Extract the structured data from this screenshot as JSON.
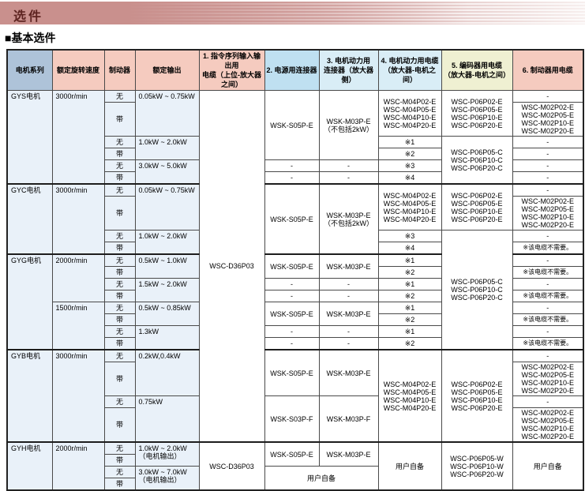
{
  "page": {
    "banner_title": "选件",
    "section_title": "■基本选件"
  },
  "colors": {
    "banner_bg": "#c9908d",
    "banner_text": "#5d2320",
    "header_series_bg": "#aec3d9",
    "header_salmon_bg": "#f5cbbf",
    "header_blue_bg": "#bfe0f1",
    "header_paleblue_bg": "#d9edf6",
    "header_yellow_bg": "#eff0d2",
    "body_tint_bg": "#e9f1f9",
    "grid_line": "#4a4a4a"
  },
  "table": {
    "headers": [
      {
        "label": "电机系列",
        "bg": "#aec3d9"
      },
      {
        "label": "额定旋转速度",
        "bg": "#f5cbbf"
      },
      {
        "label": "制动器",
        "bg": "#f5cbbf"
      },
      {
        "label": "额定输出",
        "bg": "#f5cbbf"
      },
      {
        "label": "1. 指令序列输入输出用\n电缆（上位-放大器之间）",
        "bg": "#f5cbbf"
      },
      {
        "label": "2. 电源用连接器",
        "bg": "#bfe0f1"
      },
      {
        "label": "3. 电机动力用\n连接器（放大器侧）",
        "bg": "#d9edf6"
      },
      {
        "label": "4. 电机动力用电缆\n（放大器-电机之间）",
        "bg": "#d9edf6"
      },
      {
        "label": "5. 编码器用电缆\n（放大器-电机之间）",
        "bg": "#eff0d2"
      },
      {
        "label": "6. 制动器用电缆",
        "bg": "#f5cbbf"
      }
    ],
    "rows": [
      {
        "cells": [
          {
            "v": "GYS电机",
            "r": 6,
            "k": "tint ltop name"
          },
          {
            "v": "3000r/min",
            "r": 6,
            "k": "tint ltop spd"
          },
          {
            "v": "无",
            "k": "tint brk"
          },
          {
            "v": "0.05kW ~ 0.75kW",
            "r": 2,
            "k": "tint ltop out"
          },
          {
            "v": "WSC-D36P03",
            "r": 22
          },
          {
            "v": "WSK-S05P-E",
            "r": 4
          },
          {
            "v": [
              "WSK-M03P-E",
              "（不包括2kW）"
            ],
            "r": 4
          },
          {
            "v": [
              "WSC-M04P02-E",
              "WSC-M04P05-E",
              "WSC-M04P10-E",
              "WSC-M04P20-E"
            ],
            "r": 2
          },
          {
            "v": [
              "WSC-P06P02-E",
              "WSC-P06P05-E",
              "WSC-P06P10-E",
              "WSC-P06P20-E"
            ],
            "r": 2
          },
          {
            "v": "-"
          }
        ]
      },
      {
        "cells": [
          {
            "v": "带",
            "k": "tint brk"
          },
          {
            "v": [
              "WSC-M02P02-E",
              "WSC-M02P05-E",
              "WSC-M02P10-E",
              "WSC-M02P20-E"
            ]
          }
        ]
      },
      {
        "cells": [
          {
            "v": "无",
            "k": "tint brk"
          },
          {
            "v": "1.0kW ~ 2.0kW",
            "r": 2,
            "k": "tint ltop out"
          },
          {
            "v": "※1"
          },
          {
            "v": [
              "WSC-P06P05-C",
              "WSC-P06P10-C",
              "WSC-P06P20-C"
            ],
            "r": 4
          },
          {
            "v": "-"
          }
        ]
      },
      {
        "cells": [
          {
            "v": "带",
            "k": "tint brk"
          },
          {
            "v": "※2"
          },
          {
            "v": "-"
          }
        ]
      },
      {
        "cells": [
          {
            "v": "无",
            "k": "tint brk"
          },
          {
            "v": "3.0kW ~ 5.0kW",
            "r": 2,
            "k": "tint ltop out"
          },
          {
            "v": "-"
          },
          {
            "v": "-"
          },
          {
            "v": "※3"
          },
          {
            "v": "-"
          }
        ]
      },
      {
        "cells": [
          {
            "v": "带",
            "k": "tint brk"
          },
          {
            "v": "-"
          },
          {
            "v": "-"
          },
          {
            "v": "※4"
          },
          {
            "v": "-"
          }
        ]
      },
      {
        "sec": true,
        "cells": [
          {
            "v": "GYC电机",
            "r": 4,
            "k": "tint ltop name"
          },
          {
            "v": "3000r/min",
            "r": 4,
            "k": "tint ltop spd"
          },
          {
            "v": "无",
            "k": "tint brk"
          },
          {
            "v": "0.05kW ~ 0.75kW",
            "r": 2,
            "k": "tint ltop out"
          },
          {
            "v": "WSK-S05P-E",
            "r": 4
          },
          {
            "v": [
              "WSK-M03P-E",
              "（不包括2kW）"
            ],
            "r": 4
          },
          {
            "v": [
              "WSC-M04P02-E",
              "WSC-M04P05-E",
              "WSC-M04P10-E",
              "WSC-M04P20-E"
            ],
            "r": 2
          },
          {
            "v": [
              "WSC-P06P02-E",
              "WSC-P06P05-E",
              "WSC-P06P10-E",
              "WSC-P06P20-E"
            ],
            "r": 2
          },
          {
            "v": "-"
          }
        ]
      },
      {
        "cells": [
          {
            "v": "带",
            "k": "tint brk"
          },
          {
            "v": [
              "WSC-M02P02-E",
              "WSC-M02P05-E",
              "WSC-M02P10-E",
              "WSC-M02P20-E"
            ]
          }
        ]
      },
      {
        "cells": [
          {
            "v": "无",
            "k": "tint brk"
          },
          {
            "v": "1.0kW ~ 2.0kW",
            "r": 2,
            "k": "tint ltop out"
          },
          {
            "v": "※3"
          },
          {
            "v": [
              "WSC-P06P05-C",
              "WSC-P06P10-C",
              "WSC-P06P20-C"
            ],
            "r": 10
          },
          {
            "v": "-"
          }
        ]
      },
      {
        "cells": [
          {
            "v": "带",
            "k": "tint brk"
          },
          {
            "v": "※4"
          },
          {
            "v": "※该电缆不需要。",
            "k": "note"
          }
        ]
      },
      {
        "sec": true,
        "cells": [
          {
            "v": "GYG电机",
            "r": 8,
            "k": "tint ltop name"
          },
          {
            "v": "2000r/min",
            "r": 4,
            "k": "tint ltop spd"
          },
          {
            "v": "无",
            "k": "tint brk"
          },
          {
            "v": "0.5kW ~ 1.0kW",
            "r": 2,
            "k": "tint ltop out"
          },
          {
            "v": "WSK-S05P-E",
            "r": 2
          },
          {
            "v": "WSK-M03P-E",
            "r": 2
          },
          {
            "v": "※1"
          },
          {
            "v": "-"
          }
        ]
      },
      {
        "cells": [
          {
            "v": "带",
            "k": "tint brk"
          },
          {
            "v": "※2"
          },
          {
            "v": "※该电缆不需要。",
            "k": "note"
          }
        ]
      },
      {
        "cells": [
          {
            "v": "无",
            "k": "tint brk"
          },
          {
            "v": "1.5kW ~ 2.0kW",
            "r": 2,
            "k": "tint ltop out"
          },
          {
            "v": "-"
          },
          {
            "v": "-"
          },
          {
            "v": "※1"
          },
          {
            "v": "-"
          }
        ]
      },
      {
        "cells": [
          {
            "v": "带",
            "k": "tint brk"
          },
          {
            "v": "-"
          },
          {
            "v": "-"
          },
          {
            "v": "※2"
          },
          {
            "v": "※该电缆不需要。",
            "k": "note"
          }
        ]
      },
      {
        "cells": [
          {
            "v": "1500r/min",
            "r": 4,
            "k": "tint ltop spd"
          },
          {
            "v": "无",
            "k": "tint brk"
          },
          {
            "v": "0.5kW ~ 0.85kW",
            "r": 2,
            "k": "tint ltop out"
          },
          {
            "v": "WSK-S05P-E",
            "r": 2
          },
          {
            "v": "WSK-M03P-E",
            "r": 2
          },
          {
            "v": "※1"
          },
          {
            "v": "-"
          }
        ]
      },
      {
        "cells": [
          {
            "v": "带",
            "k": "tint brk"
          },
          {
            "v": "※2"
          },
          {
            "v": "※该电缆不需要。",
            "k": "note"
          }
        ]
      },
      {
        "cells": [
          {
            "v": "无",
            "k": "tint brk"
          },
          {
            "v": "1.3kW",
            "r": 2,
            "k": "tint ltop out"
          },
          {
            "v": "-"
          },
          {
            "v": "-"
          },
          {
            "v": "※1"
          },
          {
            "v": "-"
          }
        ]
      },
      {
        "cells": [
          {
            "v": "带",
            "k": "tint brk"
          },
          {
            "v": "-"
          },
          {
            "v": "-"
          },
          {
            "v": "※2"
          },
          {
            "v": "※该电缆不需要。",
            "k": "note"
          }
        ]
      },
      {
        "sec": true,
        "cells": [
          {
            "v": "GYB电机",
            "r": 4,
            "k": "tint ltop name"
          },
          {
            "v": "3000r/min",
            "r": 4,
            "k": "tint ltop spd"
          },
          {
            "v": "无",
            "k": "tint brk"
          },
          {
            "v": "0.2kW,0.4kW",
            "r": 2,
            "k": "tint ltop out"
          },
          {
            "v": "WSK-S05P-E",
            "r": 2
          },
          {
            "v": "WSK-M03P-E",
            "r": 2
          },
          {
            "v": [
              "WSC-M04P02-E",
              "WSC-M04P05-E",
              "WSC-M04P10-E",
              "WSC-M04P20-E"
            ],
            "r": 4
          },
          {
            "v": [
              "WSC-P06P02-E",
              "WSC-P06P05-E",
              "WSC-P06P10-E",
              "WSC-P06P20-E"
            ],
            "r": 4
          },
          {
            "v": "-"
          }
        ]
      },
      {
        "cells": [
          {
            "v": "带",
            "k": "tint brk"
          },
          {
            "v": [
              "WSC-M02P02-E",
              "WSC-M02P05-E",
              "WSC-M02P10-E",
              "WSC-M02P20-E"
            ]
          }
        ]
      },
      {
        "cells": [
          {
            "v": "无",
            "k": "tint brk"
          },
          {
            "v": "0.75kW",
            "r": 2,
            "k": "tint ltop out"
          },
          {
            "v": "WSK-S03P-F",
            "r": 2
          },
          {
            "v": "WSK-M03P-F",
            "r": 2
          },
          {
            "v": "-"
          }
        ]
      },
      {
        "cells": [
          {
            "v": "带",
            "k": "tint brk"
          },
          {
            "v": [
              "WSC-M02P02-E",
              "WSC-M02P05-E",
              "WSC-M02P10-E",
              "WSC-M02P20-E"
            ]
          }
        ]
      },
      {
        "sec": true,
        "cells": [
          {
            "v": "GYH电机",
            "r": 4,
            "k": "tint ltop name"
          },
          {
            "v": "2000r/min",
            "r": 4,
            "k": "tint ltop spd"
          },
          {
            "v": "无",
            "k": "tint brk"
          },
          {
            "v": [
              "1.0kW ~ 2.0kW",
              "（电机输出）"
            ],
            "r": 2,
            "k": "tint ltop out"
          },
          {
            "v": "WSC-D36P03",
            "r": 4
          },
          {
            "v": "WSK-S05P-E",
            "r": 2
          },
          {
            "v": "WSK-M03P-E",
            "r": 2
          },
          {
            "v": "用户自备",
            "r": 4
          },
          {
            "v": [
              "WSC-P06P05-W",
              "WSC-P06P10-W",
              "WSC-P06P20-W"
            ],
            "r": 4
          },
          {
            "v": "用户自备",
            "r": 4
          }
        ]
      },
      {
        "cells": [
          {
            "v": "带",
            "k": "tint brk"
          }
        ]
      },
      {
        "cells": [
          {
            "v": "无",
            "k": "tint brk"
          },
          {
            "v": [
              "3.0kW ~ 7.0kW",
              "（电机输出）"
            ],
            "r": 2,
            "k": "tint ltop out"
          },
          {
            "v": "用户自备",
            "r": 2,
            "c": 2
          }
        ]
      },
      {
        "cells": [
          {
            "v": "带",
            "k": "tint brk"
          }
        ]
      }
    ]
  }
}
